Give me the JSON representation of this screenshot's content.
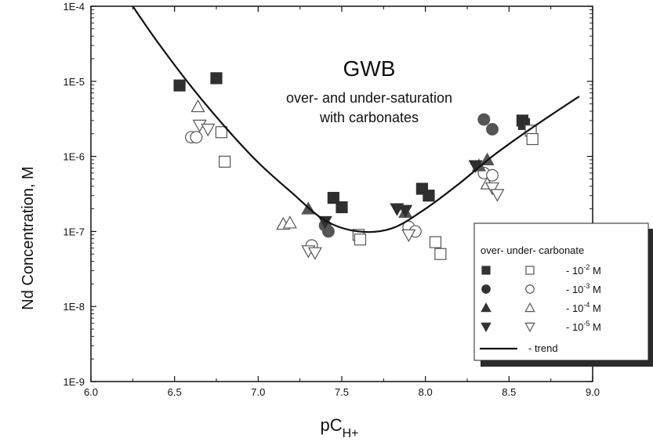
{
  "chart_data": {
    "type": "scatter",
    "title": "",
    "xlabel": "pC",
    "xlabel_sub": "H+",
    "ylabel": "Nd Concentration, M",
    "xlim": [
      6.0,
      9.0
    ],
    "ylim": [
      1e-09,
      0.0001
    ],
    "yscale": "log",
    "grid": false,
    "x_ticks": [
      "6.0",
      "6.5",
      "7.0",
      "7.5",
      "8.0",
      "8.5",
      "9.0"
    ],
    "y_ticks": [
      "1E-9",
      "1E-8",
      "1E-7",
      "1E-6",
      "1E-5",
      "1E-4"
    ],
    "annotations": {
      "title": "GWB",
      "line1": "over- and under-saturation",
      "line2": "with carbonates"
    },
    "legend": {
      "position": "bottom-right",
      "header": "over- under- carbonate",
      "entries": [
        {
          "label": "- 10",
          "exp": "-2",
          "unit": " M"
        },
        {
          "label": "- 10",
          "exp": "-3",
          "unit": " M"
        },
        {
          "label": "- 10",
          "exp": "-4",
          "unit": " M"
        },
        {
          "label": "- 10",
          "exp": "-5",
          "unit": " M"
        }
      ],
      "trend_label": "-  trend"
    },
    "series": [
      {
        "marker": "square",
        "filled": true,
        "color": "#2f2f2f",
        "points": [
          [
            6.53,
            8.8e-06
          ],
          [
            6.75,
            1.1e-05
          ],
          [
            7.45,
            2.8e-07
          ],
          [
            7.5,
            2.1e-07
          ],
          [
            7.98,
            3.7e-07
          ],
          [
            8.02,
            3e-07
          ],
          [
            8.58,
            3e-06
          ],
          [
            8.59,
            2.7e-06
          ]
        ]
      },
      {
        "marker": "square",
        "filled": false,
        "color": "#555555",
        "points": [
          [
            6.78,
            2.1e-06
          ],
          [
            6.8,
            8.5e-07
          ],
          [
            7.6,
            9e-08
          ],
          [
            7.61,
            7.8e-08
          ],
          [
            8.06,
            7.2e-08
          ],
          [
            8.09,
            5e-08
          ],
          [
            8.63,
            2.2e-06
          ],
          [
            8.64,
            1.7e-06
          ]
        ]
      },
      {
        "marker": "circle",
        "filled": true,
        "color": "#555555",
        "points": [
          [
            7.4,
            1.2e-07
          ],
          [
            7.42,
            1e-07
          ],
          [
            8.35,
            3.1e-06
          ],
          [
            8.4,
            2.3e-06
          ]
        ]
      },
      {
        "marker": "circle",
        "filled": false,
        "color": "#555555",
        "points": [
          [
            6.6,
            1.8e-06
          ],
          [
            6.63,
            1.8e-06
          ],
          [
            7.32,
            6.5e-08
          ],
          [
            7.9,
            1.15e-07
          ],
          [
            7.94,
            1e-07
          ],
          [
            8.35,
            6e-07
          ],
          [
            8.4,
            5.6e-07
          ]
        ]
      },
      {
        "marker": "triangle-up",
        "filled": true,
        "color": "#555555",
        "points": [
          [
            7.3,
            2e-07
          ],
          [
            7.88,
            1.8e-07
          ],
          [
            8.32,
            7.5e-07
          ],
          [
            8.37,
            9e-07
          ]
        ]
      },
      {
        "marker": "triangle-up",
        "filled": false,
        "color": "#555555",
        "points": [
          [
            6.64,
            4.6e-06
          ],
          [
            7.15,
            1.25e-07
          ],
          [
            7.19,
            1.3e-07
          ],
          [
            8.37,
            4.3e-07
          ]
        ]
      },
      {
        "marker": "triangle-down",
        "filled": true,
        "color": "#2f2f2f",
        "points": [
          [
            7.4,
            1.35e-07
          ],
          [
            7.83,
            2e-07
          ],
          [
            7.88,
            1.9e-07
          ],
          [
            8.3,
            7.5e-07
          ]
        ]
      },
      {
        "marker": "triangle-down",
        "filled": false,
        "color": "#555555",
        "points": [
          [
            6.65,
            2.6e-06
          ],
          [
            6.7,
            2.3e-06
          ],
          [
            7.3,
            5.5e-08
          ],
          [
            7.34,
            5.2e-08
          ],
          [
            7.9,
            9e-08
          ],
          [
            8.4,
            3.8e-07
          ],
          [
            8.43,
            3.1e-07
          ]
        ]
      },
      {
        "name": "trend",
        "marker": "line",
        "color": "#111111",
        "points": [
          [
            6.25,
            0.0001
          ],
          [
            6.4,
            3.3e-05
          ],
          [
            6.6,
            8.5e-06
          ],
          [
            6.8,
            2.5e-06
          ],
          [
            7.0,
            8.3e-07
          ],
          [
            7.2,
            3.3e-07
          ],
          [
            7.4,
            1.4e-07
          ],
          [
            7.6,
            1e-07
          ],
          [
            7.8,
            1.1e-07
          ],
          [
            8.0,
            2e-07
          ],
          [
            8.2,
            4.3e-07
          ],
          [
            8.4,
            1e-06
          ],
          [
            8.6,
            2.1e-06
          ],
          [
            8.8,
            4.2e-06
          ],
          [
            8.92,
            6.3e-06
          ]
        ]
      }
    ]
  }
}
